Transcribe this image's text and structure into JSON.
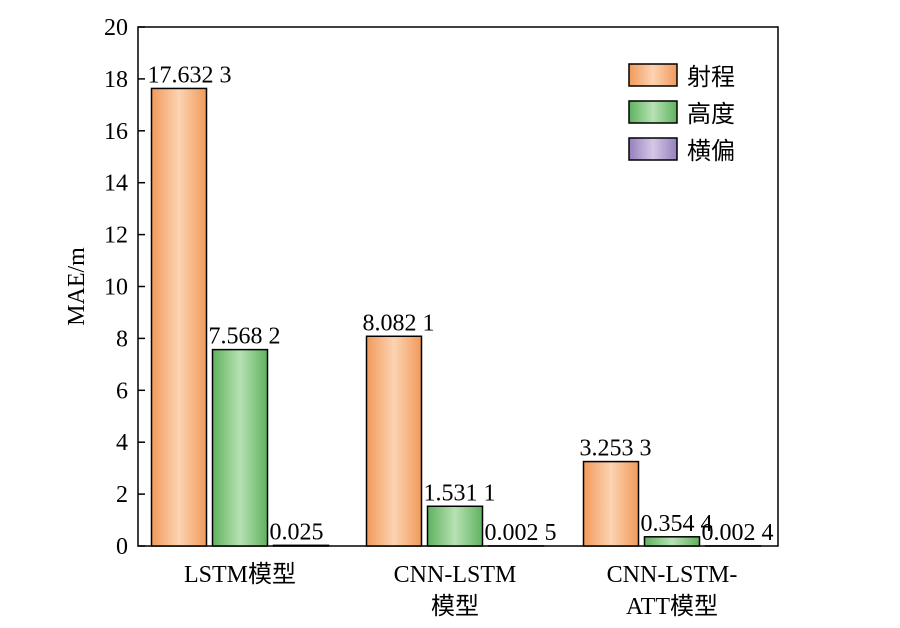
{
  "chart_data": {
    "type": "bar",
    "ylabel": "MAE/m",
    "xlabel": "",
    "ylim": [
      0,
      20
    ],
    "yticks": [
      0,
      2,
      4,
      6,
      8,
      10,
      12,
      14,
      16,
      18,
      20
    ],
    "grid": false,
    "legend_position": "top-right",
    "categories": [
      [
        "LSTM模型"
      ],
      [
        "CNN-LSTM",
        "模型"
      ],
      [
        "CNN-LSTM-",
        "ATT模型"
      ]
    ],
    "series": [
      {
        "name": "射程",
        "color": "#f4a870",
        "values": [
          17.6323,
          8.0821,
          3.2533
        ],
        "labels": [
          "17.632 3",
          "8.082 1",
          "3.253 3"
        ]
      },
      {
        "name": "高度",
        "color": "#7cc67c",
        "values": [
          7.5682,
          1.5311,
          0.3544
        ],
        "labels": [
          "7.568 2",
          "1.531 1",
          "0.354 4"
        ]
      },
      {
        "name": "横偏",
        "color": "#a993c9",
        "values": [
          0.025,
          0.0025,
          0.0024
        ],
        "labels": [
          "0.025",
          "0.002 5",
          "0.002 4"
        ]
      }
    ]
  }
}
